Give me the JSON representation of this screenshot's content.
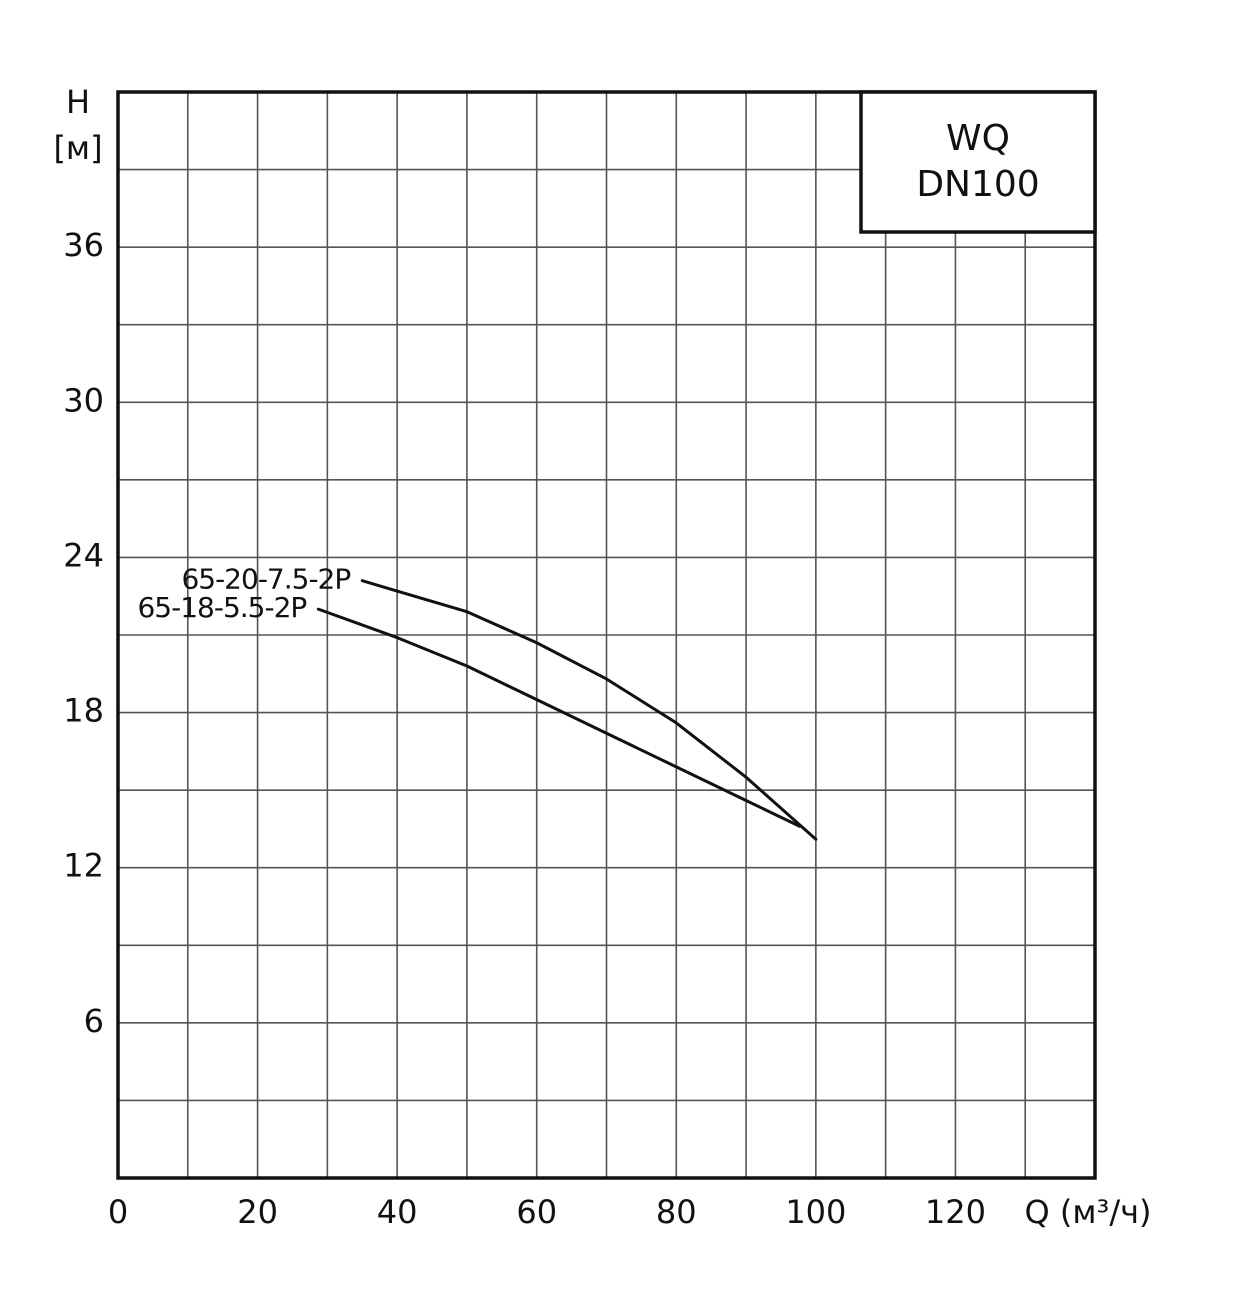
{
  "chart_data": {
    "type": "line",
    "title": "WQ",
    "subtitle": "DN100",
    "ylabel": "H",
    "yunit": "[м]",
    "xlabel": "Q (м³/ч)",
    "xlim": [
      0,
      140
    ],
    "ylim": [
      0,
      42
    ],
    "xticks": [
      0,
      20,
      40,
      60,
      80,
      100,
      120
    ],
    "xminorticks": [
      10,
      30,
      50,
      70,
      90,
      110,
      130
    ],
    "yticks": [
      6,
      12,
      18,
      24,
      30,
      36
    ],
    "yminorticks": [
      3,
      9,
      15,
      21,
      27,
      33,
      39
    ],
    "grid": true,
    "series": [
      {
        "name": "65-20-7.5-2P",
        "color": "#111111",
        "x": [
          35,
          50,
          60,
          70,
          80,
          90,
          100
        ],
        "values": [
          23.1,
          21.9,
          20.7,
          19.3,
          17.6,
          15.5,
          13.1
        ]
      },
      {
        "name": "65-18-5.5-2P",
        "color": "#111111",
        "x": [
          28.7,
          40,
          50,
          60,
          70,
          80,
          90,
          97.7
        ],
        "values": [
          22.0,
          20.9,
          19.8,
          18.5,
          17.2,
          15.9,
          14.6,
          13.6
        ]
      }
    ]
  }
}
